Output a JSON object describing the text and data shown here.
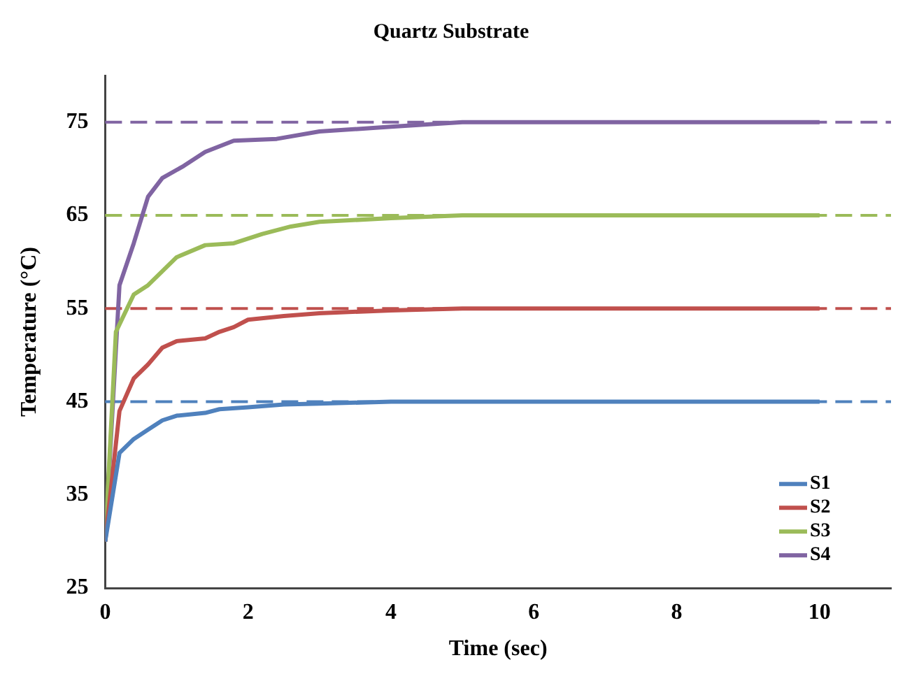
{
  "chart_data": {
    "type": "line",
    "title": "Quartz Substrate",
    "xlabel": "Time (sec)",
    "ylabel": "Temperature (°C)",
    "xlim": [
      0,
      11
    ],
    "xticks": [
      0,
      2,
      4,
      6,
      8,
      10
    ],
    "ylim": [
      25,
      80
    ],
    "yticks": [
      25,
      35,
      45,
      55,
      65,
      75
    ],
    "grid": false,
    "legend": "bottom right",
    "marker": "none",
    "line_style": "solid",
    "series": [
      {
        "name": "S1",
        "color": "#4f81bd",
        "x": [
          0,
          0.2,
          0.4,
          0.6,
          0.8,
          1,
          1.4,
          1.6,
          2,
          2.5,
          3,
          4,
          6,
          8,
          10
        ],
        "values": [
          30,
          39.5,
          41,
          42,
          43,
          43.5,
          43.8,
          44.2,
          44.4,
          44.7,
          44.8,
          45,
          45,
          45,
          45
        ]
      },
      {
        "name": "S2",
        "color": "#c0504d",
        "x": [
          0,
          0.2,
          0.4,
          0.6,
          0.8,
          1,
          1.4,
          1.6,
          1.8,
          2,
          2.5,
          3,
          4,
          5,
          10
        ],
        "values": [
          30,
          44,
          47.5,
          49,
          50.8,
          51.5,
          51.8,
          52.5,
          53,
          53.8,
          54.2,
          54.5,
          54.8,
          55,
          55
        ]
      },
      {
        "name": "S3",
        "color": "#9bbb59",
        "x": [
          0,
          0.15,
          0.4,
          0.6,
          0.8,
          1,
          1.4,
          1.8,
          2.2,
          2.6,
          3,
          4,
          5,
          10
        ],
        "values": [
          30,
          52.5,
          56.5,
          57.5,
          59,
          60.5,
          61.8,
          62,
          63,
          63.8,
          64.3,
          64.7,
          65,
          65
        ]
      },
      {
        "name": "S4",
        "color": "#8064a2",
        "x": [
          0,
          0.2,
          0.4,
          0.6,
          0.8,
          1.1,
          1.4,
          1.8,
          2.4,
          3,
          4,
          5,
          10
        ],
        "values": [
          30,
          57.5,
          62,
          67,
          69,
          70.3,
          71.8,
          73,
          73.2,
          74,
          74.5,
          75,
          75
        ]
      }
    ],
    "ref_lines": [
      {
        "axis": "y",
        "value": 45,
        "color": "#4f81bd",
        "line_style": "dashed"
      },
      {
        "axis": "y",
        "value": 55,
        "color": "#c0504d",
        "line_style": "dashed"
      },
      {
        "axis": "y",
        "value": 65,
        "color": "#9bbb59",
        "line_style": "dashed"
      },
      {
        "axis": "y",
        "value": 75,
        "color": "#8064a2",
        "line_style": "dashed"
      }
    ]
  }
}
